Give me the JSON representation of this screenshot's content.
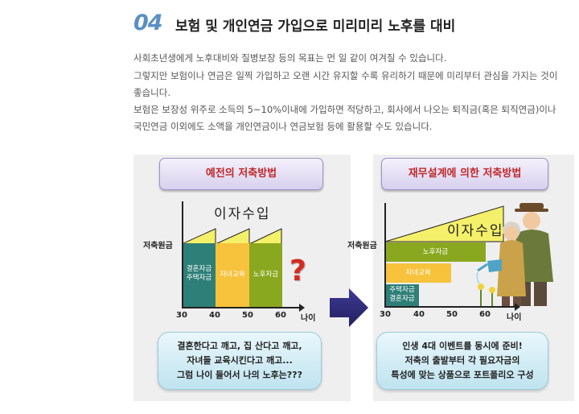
{
  "section": {
    "number": "04",
    "title": "보험 및 개인연금 가입으로 미리미리 노후를 대비"
  },
  "paragraph": {
    "lines": [
      "사회초년생에게 노후대비와 질병보장 등의 목표는 먼 일 같이 여겨질 수 있습니다.",
      "그렇지만 보험이나 연금은 일찍 가입하고 오랜 시간 유지할 수록 유리하기 때문에 미리부터 관심을 가지는 것이",
      "좋습니다.",
      "보험은 보장성 위주로 소득의 5~10%이내에 가입하면 적당하고, 회사에서 나오는 퇴직금(혹은 퇴직연금)이나",
      "국민연금 이외에도 소액을 개인연금이나 연금보험 등에 활용할 수도 있습니다."
    ]
  },
  "left_chart": {
    "header": "예전의 저축방법",
    "interest_label": "이자수입",
    "y_label": "저축원금",
    "x_ticks": [
      "30",
      "40",
      "50",
      "60"
    ],
    "x_unit": "나이",
    "question": "?",
    "bars": [
      {
        "lines": [
          "결혼자금",
          "주택자금"
        ],
        "color": "#2e7f77"
      },
      {
        "lines": [
          "자녀교육"
        ],
        "color": "#f7c23c"
      },
      {
        "lines": [
          "노후자금"
        ],
        "color": "#8aa81f"
      }
    ],
    "bubble": [
      "결혼한다고 깨고, 집 산다고 깨고,",
      "자녀들 교육시킨다고 깨고...",
      "그럼 나이 들어서 나의 노후는???"
    ]
  },
  "right_chart": {
    "header": "재무설계에 의한 저축방법",
    "interest_label": "이자수입",
    "y_label": "저축원금",
    "x_ticks": [
      "30",
      "40",
      "50",
      "60"
    ],
    "x_unit": "나이",
    "bars": [
      {
        "lines": [
          "노후자금"
        ],
        "color": "#8aa81f"
      },
      {
        "lines": [
          "자녀교육"
        ],
        "color": "#f7c23c"
      },
      {
        "lines": [
          "주택자금",
          "결혼자금"
        ],
        "color": "#2e7f77"
      }
    ],
    "bubble": [
      "인생 4대 이벤트를 동시에 준비!",
      "저축의 출발부터 각 필요자금의",
      "특성에 맞는 상품으로 포트폴리오 구성"
    ]
  },
  "colors": {
    "accent_number": "#5a8fc4",
    "header_text": "#c0282a",
    "interest_fill": "#f5f06a",
    "arrow": "#2f2b80",
    "question_mark": "#d62a20"
  }
}
